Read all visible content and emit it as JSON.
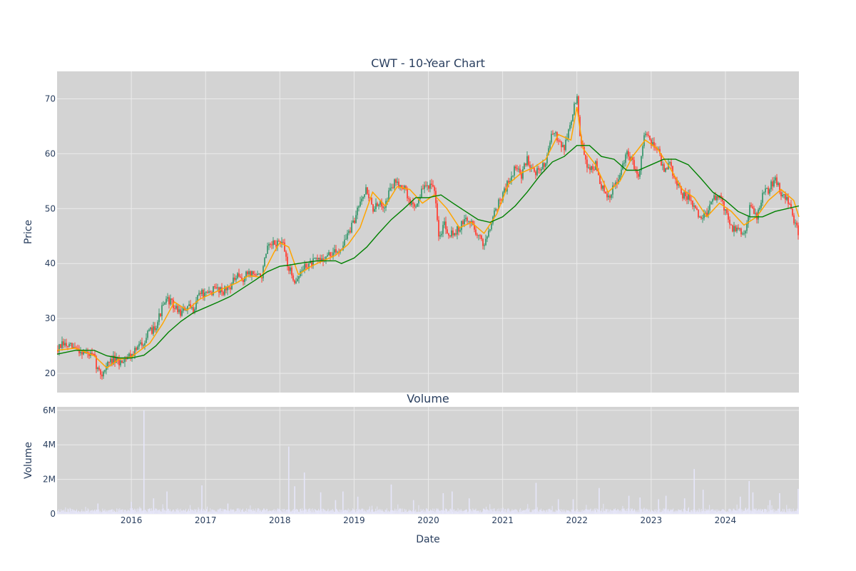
{
  "colors": {
    "plot_bg": "#d3d3d3",
    "grid": "#ebebeb",
    "up": "#3d9970",
    "down": "#ff4136",
    "ma_short": "#ffa500",
    "ma_long": "#008000",
    "volume": "#e6e6fa",
    "text": "#2a3f5f"
  },
  "chart_data": [
    {
      "type": "candlestick",
      "title": "CWT - 10-Year Chart",
      "ylabel": "Price",
      "xlabel": "",
      "xlim": [
        2015.0,
        2024.99
      ],
      "ylim": [
        16.5,
        75.0
      ],
      "yticks": [
        20,
        30,
        40,
        50,
        60,
        70
      ],
      "grid": true,
      "close_path": {
        "x": [
          2015.0,
          2015.08,
          2015.17,
          2015.25,
          2015.33,
          2015.42,
          2015.5,
          2015.55,
          2015.6,
          2015.67,
          2015.75,
          2015.83,
          2015.92,
          2016.0,
          2016.08,
          2016.17,
          2016.25,
          2016.33,
          2016.42,
          2016.5,
          2016.58,
          2016.67,
          2016.75,
          2016.83,
          2016.92,
          2017.0,
          2017.08,
          2017.17,
          2017.25,
          2017.33,
          2017.42,
          2017.5,
          2017.58,
          2017.67,
          2017.75,
          2017.83,
          2017.92,
          2018.0,
          2018.05,
          2018.12,
          2018.2,
          2018.25,
          2018.33,
          2018.42,
          2018.5,
          2018.58,
          2018.67,
          2018.75,
          2018.83,
          2018.92,
          2019.0,
          2019.08,
          2019.17,
          2019.25,
          2019.33,
          2019.42,
          2019.5,
          2019.58,
          2019.67,
          2019.75,
          2019.83,
          2019.92,
          2020.0,
          2020.08,
          2020.15,
          2020.2,
          2020.25,
          2020.33,
          2020.42,
          2020.5,
          2020.58,
          2020.67,
          2020.75,
          2020.83,
          2020.92,
          2021.0,
          2021.08,
          2021.17,
          2021.25,
          2021.33,
          2021.42,
          2021.5,
          2021.58,
          2021.67,
          2021.75,
          2021.83,
          2021.92,
          2022.0,
          2022.05,
          2022.1,
          2022.17,
          2022.25,
          2022.33,
          2022.42,
          2022.5,
          2022.58,
          2022.67,
          2022.75,
          2022.83,
          2022.92,
          2023.0,
          2023.08,
          2023.17,
          2023.25,
          2023.33,
          2023.42,
          2023.5,
          2023.58,
          2023.67,
          2023.75,
          2023.83,
          2023.92,
          2024.0,
          2024.08,
          2024.17,
          2024.25,
          2024.33,
          2024.42,
          2024.5,
          2024.58,
          2024.67,
          2024.75,
          2024.83,
          2024.92,
          2024.99
        ],
        "y": [
          24.3,
          25.2,
          24.8,
          24.5,
          24.0,
          23.5,
          22.8,
          20.5,
          19.8,
          21.5,
          22.5,
          21.8,
          23.0,
          23.5,
          24.5,
          26.0,
          27.5,
          28.8,
          32.0,
          33.5,
          32.0,
          31.0,
          32.0,
          31.5,
          35.0,
          34.0,
          35.0,
          35.5,
          35.0,
          36.0,
          37.5,
          37.0,
          38.5,
          38.0,
          37.5,
          42.5,
          43.5,
          44.0,
          43.0,
          39.0,
          37.0,
          37.5,
          39.5,
          40.0,
          40.5,
          41.0,
          41.5,
          42.0,
          43.0,
          45.5,
          47.5,
          52.0,
          53.5,
          50.0,
          50.5,
          51.0,
          54.0,
          55.0,
          54.0,
          51.0,
          50.5,
          53.5,
          54.5,
          53.0,
          44.0,
          48.0,
          46.0,
          45.5,
          46.5,
          48.0,
          47.5,
          45.0,
          43.5,
          47.0,
          50.5,
          52.5,
          55.0,
          57.5,
          56.0,
          59.0,
          57.0,
          56.5,
          59.0,
          63.5,
          63.0,
          61.0,
          66.0,
          70.5,
          62.0,
          59.5,
          57.0,
          58.0,
          54.0,
          51.5,
          54.0,
          56.0,
          60.0,
          58.5,
          56.0,
          64.5,
          62.0,
          61.5,
          56.5,
          58.0,
          55.0,
          52.5,
          52.0,
          50.0,
          48.0,
          49.5,
          51.5,
          52.5,
          49.5,
          46.5,
          46.0,
          45.5,
          50.5,
          48.5,
          52.5,
          53.5,
          55.5,
          53.0,
          52.0,
          47.5,
          45.5
        ]
      },
      "series": [
        {
          "x": [
            2015.0,
            2015.25,
            2015.5,
            2015.67,
            2015.83,
            2016.0,
            2016.25,
            2016.42,
            2016.58,
            2016.75,
            2016.92,
            2017.08,
            2017.25,
            2017.42,
            2017.58,
            2017.75,
            2017.92,
            2018.0,
            2018.12,
            2018.25,
            2018.42,
            2018.58,
            2018.75,
            2018.92,
            2019.08,
            2019.25,
            2019.42,
            2019.58,
            2019.75,
            2019.92,
            2020.08,
            2020.25,
            2020.42,
            2020.58,
            2020.75,
            2020.92,
            2021.08,
            2021.25,
            2021.42,
            2021.58,
            2021.75,
            2021.92,
            2022.0,
            2022.08,
            2022.25,
            2022.42,
            2022.58,
            2022.75,
            2022.92,
            2023.08,
            2023.25,
            2023.42,
            2023.58,
            2023.75,
            2023.92,
            2024.08,
            2024.25,
            2024.42,
            2024.58,
            2024.75,
            2024.92,
            2024.99
          ],
          "y": [
            24.2,
            24.6,
            23.2,
            21.0,
            22.5,
            23.0,
            25.5,
            29.0,
            33.0,
            31.5,
            33.5,
            34.5,
            35.5,
            36.5,
            37.8,
            37.5,
            42.0,
            43.8,
            43.0,
            38.0,
            39.5,
            40.5,
            41.5,
            43.5,
            46.5,
            53.0,
            50.5,
            54.0,
            53.5,
            51.0,
            52.5,
            50.0,
            46.5,
            47.5,
            45.5,
            49.0,
            54.5,
            56.5,
            57.5,
            59.0,
            63.5,
            62.5,
            68.5,
            61.0,
            58.0,
            53.0,
            55.0,
            59.5,
            62.5,
            61.0,
            57.5,
            53.5,
            52.0,
            48.5,
            51.0,
            49.5,
            47.0,
            48.5,
            51.5,
            53.5,
            51.5,
            48.5
          ]
        },
        {
          "x": [
            2015.0,
            2015.25,
            2015.5,
            2015.67,
            2015.83,
            2016.0,
            2016.17,
            2016.33,
            2016.5,
            2016.67,
            2016.83,
            2017.0,
            2017.17,
            2017.33,
            2017.5,
            2017.67,
            2017.83,
            2018.0,
            2018.12,
            2018.25,
            2018.5,
            2018.75,
            2018.83,
            2019.0,
            2019.17,
            2019.33,
            2019.5,
            2019.67,
            2019.83,
            2020.0,
            2020.17,
            2020.33,
            2020.5,
            2020.67,
            2020.83,
            2021.0,
            2021.17,
            2021.33,
            2021.5,
            2021.67,
            2021.83,
            2022.0,
            2022.17,
            2022.33,
            2022.5,
            2022.67,
            2022.83,
            2023.0,
            2023.17,
            2023.33,
            2023.5,
            2023.67,
            2023.83,
            2024.0,
            2024.17,
            2024.33,
            2024.5,
            2024.67,
            2024.83,
            2024.99
          ],
          "y": [
            23.5,
            24.2,
            24.2,
            23.2,
            22.8,
            22.8,
            23.3,
            25.0,
            27.5,
            29.5,
            31.0,
            32.0,
            33.0,
            34.0,
            35.5,
            37.0,
            38.5,
            39.5,
            39.7,
            40.0,
            40.5,
            40.5,
            40.0,
            41.0,
            43.0,
            45.5,
            48.0,
            50.0,
            52.0,
            52.0,
            52.5,
            51.0,
            49.5,
            48.0,
            47.5,
            48.5,
            50.5,
            53.0,
            56.0,
            58.5,
            59.5,
            61.5,
            61.5,
            59.5,
            59.0,
            57.0,
            57.0,
            58.0,
            59.0,
            59.0,
            58.0,
            55.5,
            53.0,
            51.5,
            49.5,
            48.5,
            48.5,
            49.5,
            50.0,
            50.5
          ]
        }
      ]
    },
    {
      "type": "bar",
      "title": "Volume",
      "ylabel": "Volume",
      "xlabel": "Date",
      "xlim": [
        2015.0,
        2024.99
      ],
      "ylim": [
        0,
        6200000
      ],
      "yticks": [
        0,
        2000000,
        4000000,
        6000000
      ],
      "ytick_labels": [
        "0",
        "2M",
        "4M",
        "6M"
      ],
      "xticks": [
        2016,
        2017,
        2018,
        2019,
        2020,
        2021,
        2022,
        2023,
        2024
      ],
      "xtick_labels": [
        "2016",
        "2017",
        "2018",
        "2019",
        "2020",
        "2021",
        "2022",
        "2023",
        "2024"
      ],
      "baseline": 250000,
      "spikes": {
        "x": [
          2015.55,
          2016.0,
          2016.17,
          2016.3,
          2016.48,
          2016.95,
          2017.3,
          2018.12,
          2018.2,
          2018.33,
          2018.55,
          2018.75,
          2018.85,
          2019.05,
          2019.5,
          2019.8,
          2020.2,
          2020.32,
          2020.55,
          2021.45,
          2021.75,
          2021.95,
          2022.3,
          2022.7,
          2022.85,
          2023.1,
          2023.2,
          2023.45,
          2023.58,
          2023.7,
          2024.2,
          2024.32,
          2024.37,
          2024.6,
          2024.73,
          2024.98
        ],
        "y": [
          600000,
          700000,
          6000000,
          900000,
          1300000,
          1650000,
          600000,
          3900000,
          1600000,
          2400000,
          1250000,
          800000,
          1300000,
          1000000,
          1700000,
          800000,
          1200000,
          1300000,
          900000,
          1800000,
          850000,
          850000,
          1500000,
          1050000,
          950000,
          850000,
          1050000,
          900000,
          2600000,
          1400000,
          1000000,
          1900000,
          1250000,
          800000,
          1200000,
          1450000
        ]
      }
    }
  ]
}
